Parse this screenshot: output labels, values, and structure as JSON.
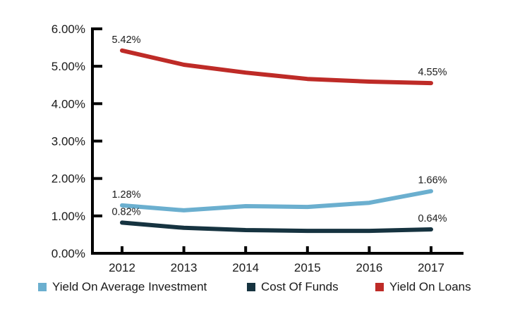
{
  "chart_data": {
    "type": "line",
    "title": "",
    "xlabel": "",
    "ylabel": "",
    "x": [
      "2012",
      "2013",
      "2014",
      "2015",
      "2016",
      "2017"
    ],
    "ylim": [
      0,
      6
    ],
    "yticks": [
      "0.00%",
      "1.00%",
      "2.00%",
      "3.00%",
      "4.00%",
      "5.00%",
      "6.00%"
    ],
    "grid": false,
    "legend_position": "bottom",
    "series": [
      {
        "name": "Yield On Average Investment",
        "color": "#6bafcf",
        "values": [
          1.28,
          1.15,
          1.26,
          1.24,
          1.35,
          1.66
        ],
        "labels": {
          "0": "1.28%",
          "5": "1.66%"
        }
      },
      {
        "name": "Cost Of Funds",
        "color": "#163340",
        "values": [
          0.82,
          0.68,
          0.62,
          0.6,
          0.6,
          0.64
        ],
        "labels": {
          "0": "0.82%",
          "5": "0.64%"
        }
      },
      {
        "name": "Yield On Loans",
        "color": "#be2b27",
        "values": [
          5.42,
          5.04,
          4.83,
          4.66,
          4.59,
          4.55
        ],
        "labels": {
          "0": "5.42%",
          "5": "4.55%"
        }
      }
    ]
  },
  "legend": {
    "items": [
      {
        "label": "Yield On Average Investment",
        "color": "#6bafcf"
      },
      {
        "label": "Cost Of Funds",
        "color": "#163340"
      },
      {
        "label": "Yield On Loans",
        "color": "#be2b27"
      }
    ]
  }
}
